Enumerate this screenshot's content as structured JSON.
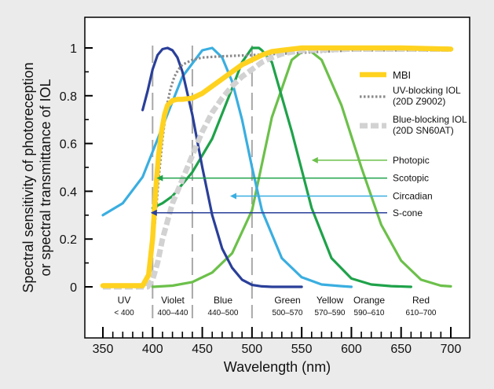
{
  "chart_data": {
    "type": "line",
    "xlabel": "Wavelength (nm)",
    "ylabel_line1": "Spectral sensitivity of photoreception",
    "ylabel_line2": "or spectral transmittance of IOL",
    "xlim": [
      350,
      700
    ],
    "ylim": [
      0,
      1
    ],
    "x_ticks": [
      "350",
      "400",
      "450",
      "500",
      "550",
      "600",
      "650",
      "700"
    ],
    "y_ticks": [
      "0",
      "0.2",
      "0.4",
      "0.6",
      "0.8",
      "1"
    ],
    "grid": false,
    "legend_position": "right",
    "bands": [
      {
        "name": "UV",
        "range": "< 400"
      },
      {
        "name": "Violet",
        "range": "400–440"
      },
      {
        "name": "Blue",
        "range": "440–500"
      },
      {
        "name": "Green",
        "range": "500–570"
      },
      {
        "name": "Yellow",
        "range": "570–590"
      },
      {
        "name": "Orange",
        "range": "590–610"
      },
      {
        "name": "Red",
        "range": "610–700"
      }
    ],
    "band_dividers": [
      400,
      440,
      500
    ],
    "series": [
      {
        "name": "MBI",
        "label_lines": [
          "MBI"
        ],
        "color": "#ffd21f",
        "style": "solid-thick",
        "x": [
          350,
          390,
          396,
          400,
          403,
          406,
          409,
          412,
          415,
          420,
          425,
          430,
          440,
          450,
          460,
          470,
          480,
          490,
          500,
          510,
          520,
          530,
          550,
          600,
          650,
          700
        ],
        "y": [
          0.005,
          0.005,
          0.05,
          0.2,
          0.4,
          0.55,
          0.65,
          0.72,
          0.76,
          0.78,
          0.785,
          0.785,
          0.79,
          0.81,
          0.84,
          0.87,
          0.9,
          0.93,
          0.95,
          0.97,
          0.985,
          0.99,
          1.0,
          1.0,
          1.0,
          0.995
        ]
      },
      {
        "name": "UV-blocking IOL (20D Z9002)",
        "label_lines": [
          "UV-blocking IOL",
          "(20D Z9002)"
        ],
        "color": "#8a8a8a",
        "style": "dotted",
        "x": [
          350,
          392,
          398,
          402,
          406,
          410,
          414,
          418,
          422,
          426,
          430,
          440,
          450,
          470,
          500,
          550,
          600,
          650,
          700
        ],
        "y": [
          0.0,
          0.0,
          0.08,
          0.25,
          0.45,
          0.62,
          0.75,
          0.83,
          0.88,
          0.91,
          0.93,
          0.95,
          0.96,
          0.965,
          0.97,
          0.98,
          0.99,
          0.99,
          0.99
        ]
      },
      {
        "name": "Blue-blocking IOL (20D SN60AT)",
        "label_lines": [
          "Blue-blocking IOL",
          "(20D SN60AT)"
        ],
        "color": "#d2d2d2",
        "style": "dashed-thick",
        "x": [
          350,
          395,
          400,
          405,
          410,
          420,
          430,
          440,
          450,
          460,
          470,
          480,
          490,
          500,
          510,
          520,
          530,
          550,
          600,
          650,
          700
        ],
        "y": [
          0.0,
          0.0,
          0.03,
          0.1,
          0.2,
          0.35,
          0.45,
          0.55,
          0.65,
          0.73,
          0.79,
          0.84,
          0.88,
          0.91,
          0.94,
          0.96,
          0.975,
          0.99,
          0.995,
          0.995,
          0.995
        ]
      },
      {
        "name": "Photopic",
        "label_lines": [
          "Photopic"
        ],
        "color": "#6cc04a",
        "style": "solid",
        "x": [
          400,
          420,
          440,
          460,
          480,
          500,
          520,
          540,
          555,
          570,
          590,
          610,
          630,
          650,
          670,
          690,
          700
        ],
        "y": [
          0.0,
          0.005,
          0.02,
          0.06,
          0.14,
          0.32,
          0.71,
          0.95,
          1.0,
          0.95,
          0.76,
          0.5,
          0.26,
          0.11,
          0.03,
          0.005,
          0.002
        ]
      },
      {
        "name": "Scotopic",
        "label_lines": [
          "Scotopic"
        ],
        "color": "#1fa24a",
        "style": "solid",
        "x": [
          400,
          410,
          420,
          440,
          460,
          480,
          490,
          500,
          507,
          510,
          520,
          540,
          560,
          580,
          600,
          620,
          640,
          660
        ],
        "y": [
          0.33,
          0.35,
          0.38,
          0.48,
          0.62,
          0.83,
          0.94,
          1.0,
          1.0,
          0.99,
          0.94,
          0.65,
          0.33,
          0.12,
          0.035,
          0.01,
          0.003,
          0.0
        ]
      },
      {
        "name": "Circadian",
        "label_lines": [
          "Circadian"
        ],
        "color": "#3aaee0",
        "style": "solid",
        "x": [
          350,
          370,
          390,
          410,
          430,
          450,
          460,
          470,
          480,
          490,
          500,
          510,
          530,
          550,
          570,
          590,
          600
        ],
        "y": [
          0.3,
          0.35,
          0.46,
          0.67,
          0.88,
          0.99,
          1.0,
          0.96,
          0.86,
          0.7,
          0.5,
          0.32,
          0.12,
          0.04,
          0.01,
          0.003,
          0.0
        ]
      },
      {
        "name": "S-cone",
        "label_lines": [
          "S-cone"
        ],
        "color": "#2a3f99",
        "style": "solid",
        "x": [
          390,
          395,
          400,
          405,
          410,
          415,
          420,
          425,
          430,
          440,
          450,
          460,
          470,
          480,
          490,
          500,
          510,
          520,
          550
        ],
        "y": [
          0.74,
          0.82,
          0.91,
          0.97,
          0.995,
          1.0,
          0.99,
          0.96,
          0.9,
          0.72,
          0.5,
          0.3,
          0.16,
          0.08,
          0.03,
          0.008,
          0.002,
          0.0,
          0.0
        ]
      }
    ],
    "annotations": [
      {
        "label": "Photopic",
        "color": "#6cc04a",
        "y": 0.53,
        "x_end": 560
      },
      {
        "label": "Scotopic",
        "color": "#1fa24a",
        "y": 0.455,
        "x_end": 404
      },
      {
        "label": "Circadian",
        "color": "#3aaee0",
        "y": 0.38,
        "x_end": 478
      },
      {
        "label": "S-cone",
        "color": "#2a3f99",
        "y": 0.31,
        "x_end": 398
      }
    ]
  }
}
